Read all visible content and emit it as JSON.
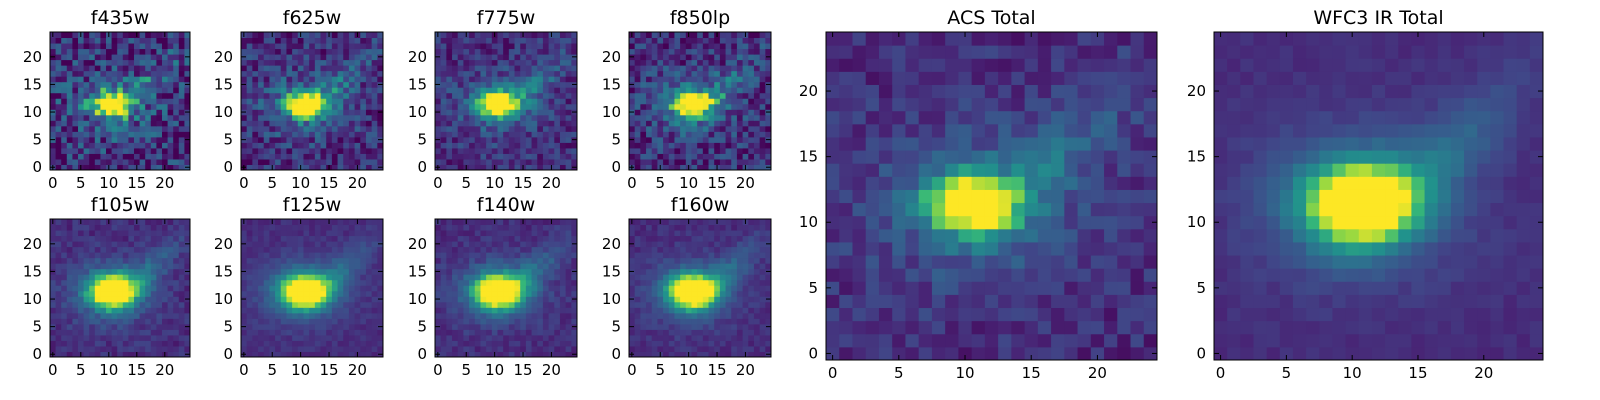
{
  "chart_data": [
    {
      "type": "heatmap",
      "title": "f435w",
      "source": "f435w",
      "noise": 0.55,
      "xticks": [
        0,
        5,
        10,
        15,
        20
      ],
      "yticks": [
        0,
        5,
        10,
        15,
        20
      ],
      "xlim": [
        0,
        24
      ],
      "ylim": [
        0,
        24
      ],
      "colormap": "viridis"
    },
    {
      "type": "heatmap",
      "title": "f625w",
      "source": "f625w",
      "noise": 0.4,
      "xticks": [
        0,
        5,
        10,
        15,
        20
      ],
      "yticks": [
        0,
        5,
        10,
        15,
        20
      ],
      "xlim": [
        0,
        24
      ],
      "ylim": [
        0,
        24
      ],
      "colormap": "viridis"
    },
    {
      "type": "heatmap",
      "title": "f775w",
      "source": "f775w",
      "noise": 0.32,
      "xticks": [
        0,
        5,
        10,
        15,
        20
      ],
      "yticks": [
        0,
        5,
        10,
        15,
        20
      ],
      "xlim": [
        0,
        24
      ],
      "ylim": [
        0,
        24
      ],
      "colormap": "viridis"
    },
    {
      "type": "heatmap",
      "title": "f850lp",
      "source": "f850lp",
      "noise": 0.42,
      "xticks": [
        0,
        5,
        10,
        15,
        20
      ],
      "yticks": [
        0,
        5,
        10,
        15,
        20
      ],
      "xlim": [
        0,
        24
      ],
      "ylim": [
        0,
        24
      ],
      "colormap": "viridis"
    },
    {
      "type": "heatmap",
      "title": "f105w",
      "source": "f105w",
      "noise": 0.16,
      "xticks": [
        0,
        5,
        10,
        15,
        20
      ],
      "yticks": [
        0,
        5,
        10,
        15,
        20
      ],
      "xlim": [
        0,
        24
      ],
      "ylim": [
        0,
        24
      ],
      "colormap": "viridis"
    },
    {
      "type": "heatmap",
      "title": "f125w",
      "source": "f125w",
      "noise": 0.1,
      "xticks": [
        0,
        5,
        10,
        15,
        20
      ],
      "yticks": [
        0,
        5,
        10,
        15,
        20
      ],
      "xlim": [
        0,
        24
      ],
      "ylim": [
        0,
        24
      ],
      "colormap": "viridis"
    },
    {
      "type": "heatmap",
      "title": "f140w",
      "source": "f140w",
      "noise": 0.14,
      "xticks": [
        0,
        5,
        10,
        15,
        20
      ],
      "yticks": [
        0,
        5,
        10,
        15,
        20
      ],
      "xlim": [
        0,
        24
      ],
      "ylim": [
        0,
        24
      ],
      "colormap": "viridis"
    },
    {
      "type": "heatmap",
      "title": "f160w",
      "source": "f160w",
      "noise": 0.12,
      "xticks": [
        0,
        5,
        10,
        15,
        20
      ],
      "yticks": [
        0,
        5,
        10,
        15,
        20
      ],
      "xlim": [
        0,
        24
      ],
      "ylim": [
        0,
        24
      ],
      "colormap": "viridis"
    },
    {
      "type": "heatmap",
      "title": "ACS Total",
      "source": "acs",
      "noise": 0.22,
      "xticks": [
        0,
        5,
        10,
        15,
        20
      ],
      "yticks": [
        0,
        5,
        10,
        15,
        20
      ],
      "xlim": [
        0,
        24
      ],
      "ylim": [
        0,
        24
      ],
      "colormap": "viridis"
    },
    {
      "type": "heatmap",
      "title": "WFC3 IR Total",
      "source": "ir",
      "noise": 0.07,
      "xticks": [
        0,
        5,
        10,
        15,
        20
      ],
      "yticks": [
        0,
        5,
        10,
        15,
        20
      ],
      "xlim": [
        0,
        24
      ],
      "ylim": [
        0,
        24
      ],
      "colormap": "viridis"
    }
  ],
  "colors": {
    "colormap_low": "#440154",
    "colormap_mid": "#21918c",
    "colormap_high": "#fde725"
  }
}
